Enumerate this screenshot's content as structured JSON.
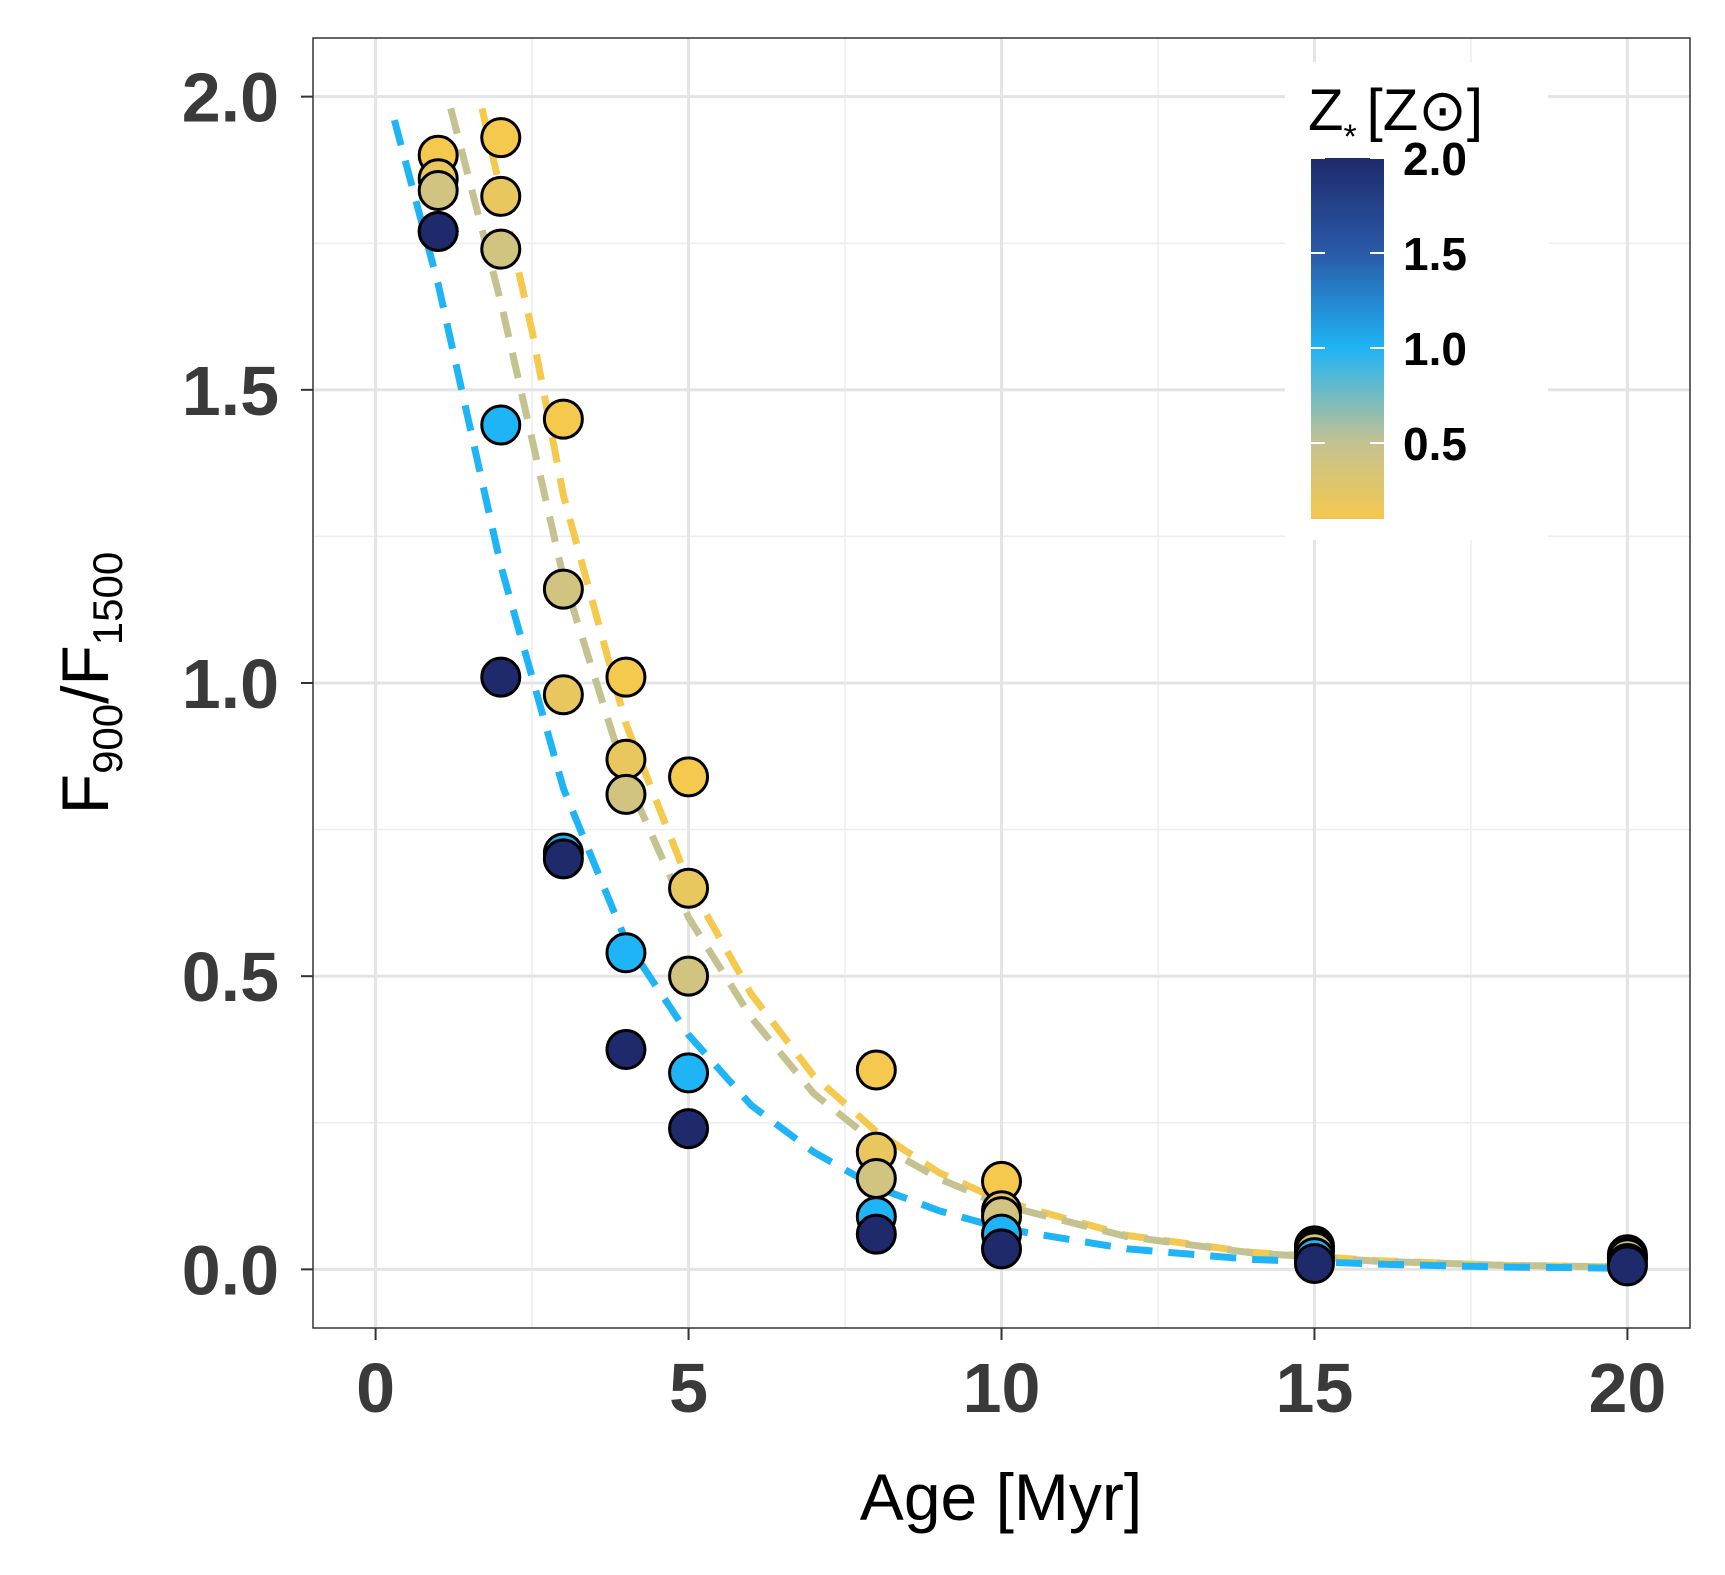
{
  "chart_data": {
    "type": "scatter",
    "xlabel": "Age [Myr]",
    "ylabel": {
      "prefix": "F",
      "sub1": "900",
      "slash": "/",
      "prefix2": "F",
      "sub2": "1500"
    },
    "xlim": [
      -1,
      21
    ],
    "ylim": [
      -0.1,
      2.1
    ],
    "x_ticks": [
      0,
      5,
      10,
      15,
      20
    ],
    "x_tick_labels": [
      "0",
      "5",
      "10",
      "15",
      "20"
    ],
    "y_ticks": [
      0.0,
      0.5,
      1.0,
      1.5,
      2.0
    ],
    "y_tick_labels": [
      "0.0",
      "0.5",
      "1.0",
      "1.5",
      "2.0"
    ],
    "grid": true,
    "legend": {
      "title": {
        "main": "Z",
        "sub": "*",
        "bracket_open": "[Z",
        "sun": "⊙",
        "bracket_close": "]"
      },
      "placement": "top-right",
      "ticks": [
        2.0,
        1.5,
        1.0,
        0.5
      ],
      "tick_labels": [
        "2.0",
        "1.5",
        "1.0",
        "0.5"
      ],
      "range": [
        0.1,
        2.0
      ]
    },
    "colorscale": [
      {
        "z": 0.1,
        "color": "#f5c84e"
      },
      {
        "z": 0.5,
        "color": "#c4c291"
      },
      {
        "z": 1.0,
        "color": "#1fb4f5"
      },
      {
        "z": 1.5,
        "color": "#2a5aa8"
      },
      {
        "z": 2.0,
        "color": "#1e2a6b"
      }
    ],
    "fit_curves": [
      {
        "name": "Z=0.1",
        "color": "#f5c84e",
        "x": [
          1.7,
          2.5,
          3,
          4,
          5,
          6,
          7,
          8,
          9,
          10,
          12,
          14,
          16,
          18,
          20
        ],
        "y": [
          1.98,
          1.6,
          1.32,
          0.93,
          0.66,
          0.47,
          0.33,
          0.235,
          0.165,
          0.117,
          0.058,
          0.029,
          0.015,
          0.007,
          0.004
        ]
      },
      {
        "name": "Z=0.5",
        "color": "#c4c291",
        "x": [
          1.2,
          2,
          3,
          4,
          5,
          6,
          7,
          8,
          9,
          10,
          12,
          14,
          16,
          18,
          20
        ],
        "y": [
          1.98,
          1.65,
          1.18,
          0.84,
          0.6,
          0.43,
          0.3,
          0.215,
          0.155,
          0.11,
          0.056,
          0.028,
          0.014,
          0.007,
          0.004
        ]
      },
      {
        "name": "Z=1.0",
        "color": "#1fb4f5",
        "x": [
          0.3,
          1,
          2,
          3,
          4,
          5,
          6,
          7,
          8,
          9,
          10,
          12,
          14,
          16,
          18,
          20
        ],
        "y": [
          1.96,
          1.68,
          1.2,
          0.82,
          0.56,
          0.4,
          0.28,
          0.2,
          0.14,
          0.1,
          0.07,
          0.035,
          0.017,
          0.009,
          0.004,
          0.002
        ]
      }
    ],
    "series": [
      {
        "name": "Z=0.1",
        "z": 0.1,
        "x": [
          1,
          2,
          3,
          4,
          5,
          8,
          10,
          15,
          20
        ],
        "y": [
          1.9,
          1.93,
          1.45,
          1.01,
          0.84,
          0.34,
          0.15,
          0.04,
          0.025
        ]
      },
      {
        "name": "Z=0.2",
        "z": 0.2,
        "x": [
          1,
          2,
          3,
          4,
          5,
          8,
          10,
          15,
          20
        ],
        "y": [
          1.86,
          1.83,
          0.98,
          0.87,
          0.65,
          0.2,
          0.1,
          0.035,
          0.02
        ]
      },
      {
        "name": "Z=0.4",
        "z": 0.4,
        "x": [
          1,
          2,
          3,
          4,
          5,
          8,
          10,
          15,
          20
        ],
        "y": [
          1.84,
          1.74,
          1.16,
          0.81,
          0.5,
          0.155,
          0.09,
          0.03,
          0.018
        ]
      },
      {
        "name": "Z=1.0",
        "z": 1.0,
        "x": [
          1,
          2,
          3,
          4,
          5,
          8,
          10,
          15,
          20
        ],
        "y": [
          1.77,
          1.44,
          0.71,
          0.54,
          0.335,
          0.09,
          0.06,
          0.02,
          0.01
        ]
      },
      {
        "name": "Z=2.0",
        "z": 2.0,
        "x": [
          1,
          2,
          3,
          4,
          5,
          8,
          10,
          15,
          20
        ],
        "y": [
          1.77,
          1.01,
          0.7,
          0.375,
          0.24,
          0.06,
          0.035,
          0.01,
          0.006
        ]
      }
    ]
  }
}
